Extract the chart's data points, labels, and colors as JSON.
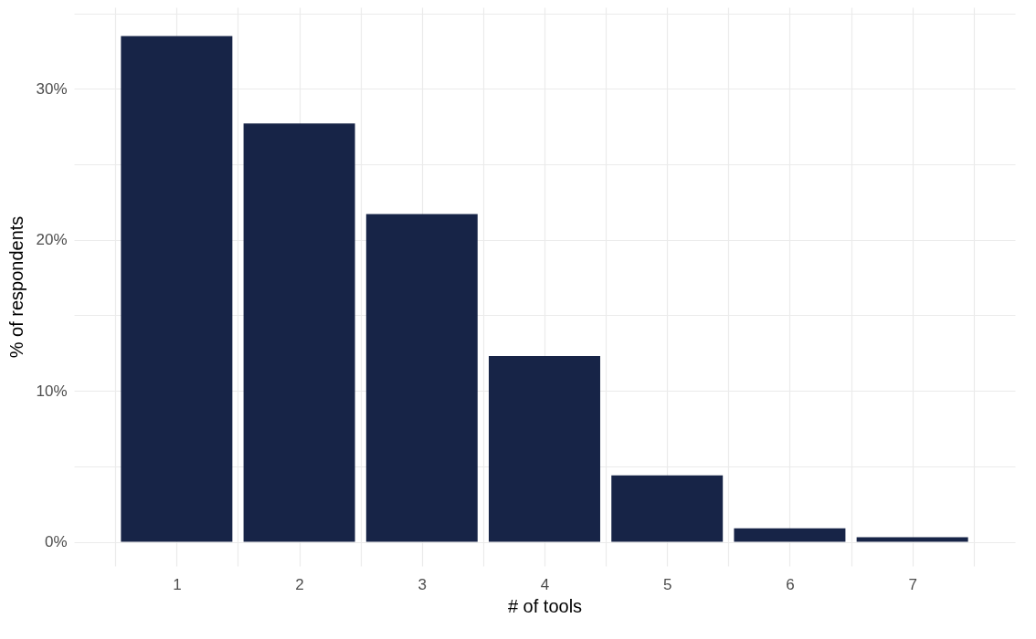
{
  "chart_data": {
    "type": "bar",
    "xlabel": "# of tools",
    "ylabel": "% of respondents",
    "x": [
      1,
      2,
      3,
      4,
      5,
      6,
      7
    ],
    "series": [
      {
        "color": "#172447",
        "values": [
          33.5,
          27.7,
          21.7,
          12.3,
          4.4,
          0.9,
          0.3
        ]
      }
    ],
    "xlim": [
      0.2,
      7.8
    ],
    "xticks": [
      {
        "value": 0.5,
        "label": null
      },
      1,
      {
        "value": 1.5,
        "label": null
      },
      2,
      {
        "value": 2.5,
        "label": null
      },
      3,
      {
        "value": 3.5,
        "label": null
      },
      4,
      {
        "value": 4.5,
        "label": null
      },
      5,
      {
        "value": 5.5,
        "label": null
      },
      6,
      {
        "value": 6.5,
        "label": null
      },
      7,
      {
        "value": 7.5,
        "label": null
      }
    ],
    "ylim": [
      -1.6,
      35.4
    ],
    "yticks": [
      {
        "value": 0,
        "label": "0%"
      },
      {
        "value": 5,
        "label": null
      },
      {
        "value": 10,
        "label": "10%"
      },
      {
        "value": 15,
        "label": null
      },
      {
        "value": 20,
        "label": "20%"
      },
      {
        "value": 25,
        "label": null
      },
      {
        "value": 30,
        "label": "30%"
      },
      {
        "value": 35,
        "label": null
      }
    ],
    "grid": true
  }
}
